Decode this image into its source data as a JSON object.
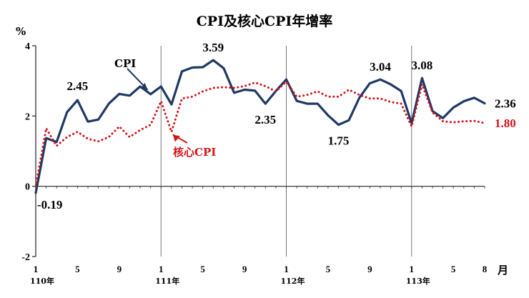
{
  "chart_data": {
    "type": "line",
    "title": "CPI及核心CPI年增率",
    "ylabel": "%",
    "xlabel": "",
    "x_unit": "月",
    "ylim": [
      -2,
      4
    ],
    "yticks": [
      "-2",
      "0",
      "2",
      "4"
    ],
    "grid": false,
    "colors": {
      "cpi": "#1f3864",
      "core": "#d1141a"
    },
    "x_tick_labels": [
      "1",
      "5",
      "9",
      "1",
      "5",
      "9",
      "1",
      "5",
      "9",
      "1",
      "5",
      "8"
    ],
    "x_tick_index": [
      0,
      4,
      8,
      12,
      16,
      20,
      24,
      28,
      32,
      36,
      40,
      43
    ],
    "year_labels": [
      {
        "label": "110年",
        "index": 0
      },
      {
        "label": "111年",
        "index": 12
      },
      {
        "label": "112年",
        "index": 24
      },
      {
        "label": "113年",
        "index": 36
      }
    ],
    "year_dividers": [
      12,
      24,
      36
    ],
    "series": [
      {
        "key": "cpi",
        "name": "CPI",
        "values": [
          -0.19,
          1.37,
          1.26,
          2.11,
          2.45,
          1.84,
          1.9,
          2.35,
          2.63,
          2.58,
          2.84,
          2.62,
          2.84,
          2.33,
          3.27,
          3.38,
          3.39,
          3.59,
          3.36,
          2.66,
          2.75,
          2.72,
          2.35,
          2.71,
          3.04,
          2.43,
          2.35,
          2.35,
          2.02,
          1.75,
          1.88,
          2.52,
          2.93,
          3.04,
          2.9,
          2.71,
          1.79,
          3.08,
          2.14,
          1.94,
          2.24,
          2.42,
          2.52,
          2.36
        ]
      },
      {
        "key": "core",
        "name": "核心CPI",
        "values": [
          0.0,
          1.65,
          1.15,
          1.4,
          1.55,
          1.35,
          1.28,
          1.4,
          1.7,
          1.4,
          1.6,
          1.75,
          2.42,
          1.55,
          2.5,
          2.55,
          2.7,
          2.8,
          2.82,
          2.8,
          2.85,
          2.95,
          2.85,
          2.7,
          2.98,
          2.55,
          2.6,
          2.7,
          2.55,
          2.55,
          2.75,
          2.6,
          2.5,
          2.5,
          2.4,
          2.35,
          1.7,
          2.9,
          2.1,
          1.85,
          1.82,
          1.85,
          1.86,
          1.8
        ]
      }
    ],
    "annotations": [
      {
        "text": "-0.19",
        "series": "cpi",
        "index": 0
      },
      {
        "text": "2.45",
        "series": "cpi",
        "index": 4
      },
      {
        "text": "3.59",
        "series": "cpi",
        "index": 17
      },
      {
        "text": "2.35",
        "series": "cpi",
        "index": 22
      },
      {
        "text": "1.75",
        "series": "cpi",
        "index": 29
      },
      {
        "text": "3.04",
        "series": "cpi",
        "index": 33
      },
      {
        "text": "3.08",
        "series": "cpi",
        "index": 37
      },
      {
        "text": "2.36",
        "series": "cpi",
        "index": 43
      },
      {
        "text": "1.80",
        "series": "core",
        "index": 43
      }
    ]
  }
}
